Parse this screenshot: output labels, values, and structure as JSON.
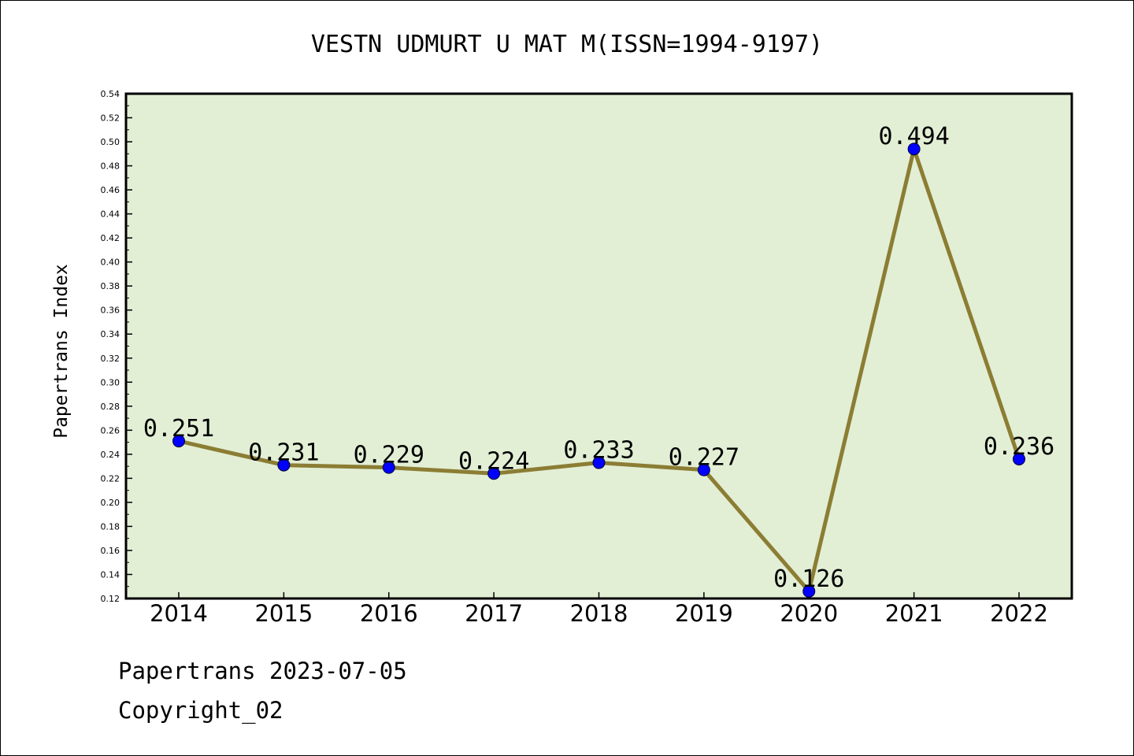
{
  "chart_data": {
    "type": "line",
    "title": "VESTN UDMURT U MAT M(ISSN=1994-9197)",
    "ylabel": "Papertrans Index",
    "xlabel": "",
    "categories": [
      "2014",
      "2015",
      "2016",
      "2017",
      "2018",
      "2019",
      "2020",
      "2021",
      "2022"
    ],
    "series": [
      {
        "values": [
          0.251,
          0.231,
          0.229,
          0.224,
          0.233,
          0.227,
          0.126,
          0.494,
          0.236
        ]
      }
    ],
    "data_labels": [
      "0.251",
      "0.231",
      "0.229",
      "0.224",
      "0.233",
      "0.227",
      "0.126",
      "0.494",
      "0.236"
    ],
    "ylim": [
      0.12,
      0.54
    ],
    "yticks": [
      "0.12",
      "0.14",
      "0.16",
      "0.18",
      "0.20",
      "0.22",
      "0.24",
      "0.26",
      "0.28",
      "0.30",
      "0.32",
      "0.34",
      "0.36",
      "0.38",
      "0.40",
      "0.42",
      "0.44",
      "0.46",
      "0.48",
      "0.50",
      "0.52",
      "0.54"
    ],
    "grid": false,
    "colors": {
      "plot_background": "#e2efd5",
      "line": "#8b7d33",
      "marker": "#0000ff"
    }
  },
  "footer": {
    "line1": "Papertrans 2023-07-05",
    "line2": "Copyright_02"
  }
}
